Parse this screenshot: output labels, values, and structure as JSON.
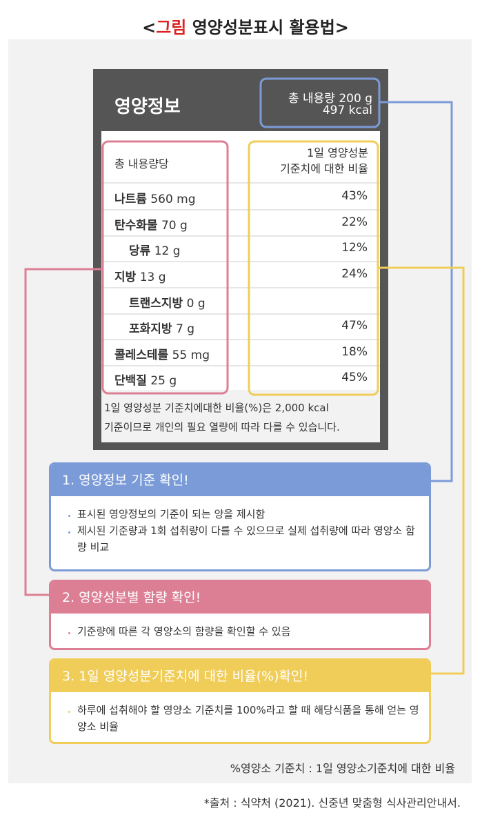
{
  "title": {
    "open": "<",
    "label": "그림",
    "text": "영양성분표시 활용법",
    "close": ">"
  },
  "label": {
    "heading": "영양정보",
    "total": [
      "총 내용량 200 g",
      "497 kcal"
    ],
    "column_left": "총 내용량당",
    "column_right": [
      "1일 영양성분",
      "기준치에 대한 비율"
    ],
    "rows": [
      {
        "name": "나트륨",
        "amount": "560 mg",
        "percent": "43%",
        "indent": false
      },
      {
        "name": "탄수화물",
        "amount": "70 g",
        "percent": "22%",
        "indent": false
      },
      {
        "name": "당류",
        "amount": "12 g",
        "percent": "12%",
        "indent": true
      },
      {
        "name": "지방",
        "amount": "13 g",
        "percent": "24%",
        "indent": false
      },
      {
        "name": "트랜스지방",
        "amount": "0 g",
        "percent": null,
        "indent": true
      },
      {
        "name": "포화지방",
        "amount": "7 g",
        "percent": "47%",
        "indent": true
      },
      {
        "name": "콜레스테롤",
        "amount": "55 mg",
        "percent": "18%",
        "indent": false
      },
      {
        "name": "단백질",
        "amount": "25 g",
        "percent": "45%",
        "indent": false
      }
    ],
    "note": [
      "1일 영양성분 기준치에대한 비율(%)은 2,000 kcal",
      "기준이므로 개인의 필요 열량에 따라 다를 수 있습니다."
    ]
  },
  "cards": [
    {
      "title": "1. 영양정보 기준 확인!",
      "color": "#7b9bd8",
      "bullets": [
        "표시된 영양정보의 기준이 되는 양을 제시함",
        "제시된 기준량과 1회 섭취량이 다를 수 있으므로 실제 섭취량에 따라 영양소 함량 비교"
      ]
    },
    {
      "title": "2. 영양성분별 함량 확인!",
      "color": "#dd7f94",
      "bullets": [
        "기준량에 따른 각 영양소의 함량을 확인할 수 있음"
      ]
    },
    {
      "title": "3. 1일 영양성분기준치에 대한 비율(%)확인!",
      "color": "#f0cd59",
      "bullets": [
        "하루에 섭취해야 할 영양소 기준치를 100%라고 할 때 해당식품을 통해 얻는 영양소 비율"
      ]
    }
  ],
  "legend_note": "%영양소 기준치 : 1일 영양소기준치에 대한 비율",
  "source": "*출처 : 식약처 (2021). 신중년 맞춤형 식사관리안내서."
}
